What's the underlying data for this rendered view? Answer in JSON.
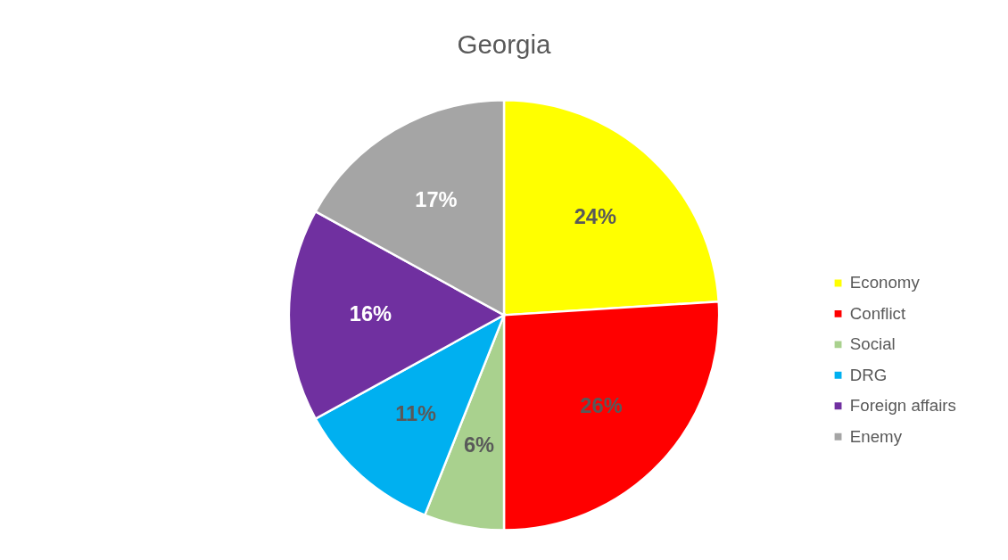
{
  "chart_data": {
    "type": "pie",
    "title": "Georgia",
    "categories": [
      "Economy",
      "Conflict",
      "Social",
      "DRG",
      "Foreign affairs",
      "Enemy"
    ],
    "values": [
      24,
      26,
      6,
      11,
      16,
      17
    ],
    "colors": [
      "#ffff00",
      "#ff0000",
      "#a9d18e",
      "#00b0f0",
      "#7030a0",
      "#a5a5a5"
    ],
    "value_labels": [
      "24%",
      "26%",
      "6%",
      "11%",
      "16%",
      "17%"
    ],
    "legend": "right"
  }
}
